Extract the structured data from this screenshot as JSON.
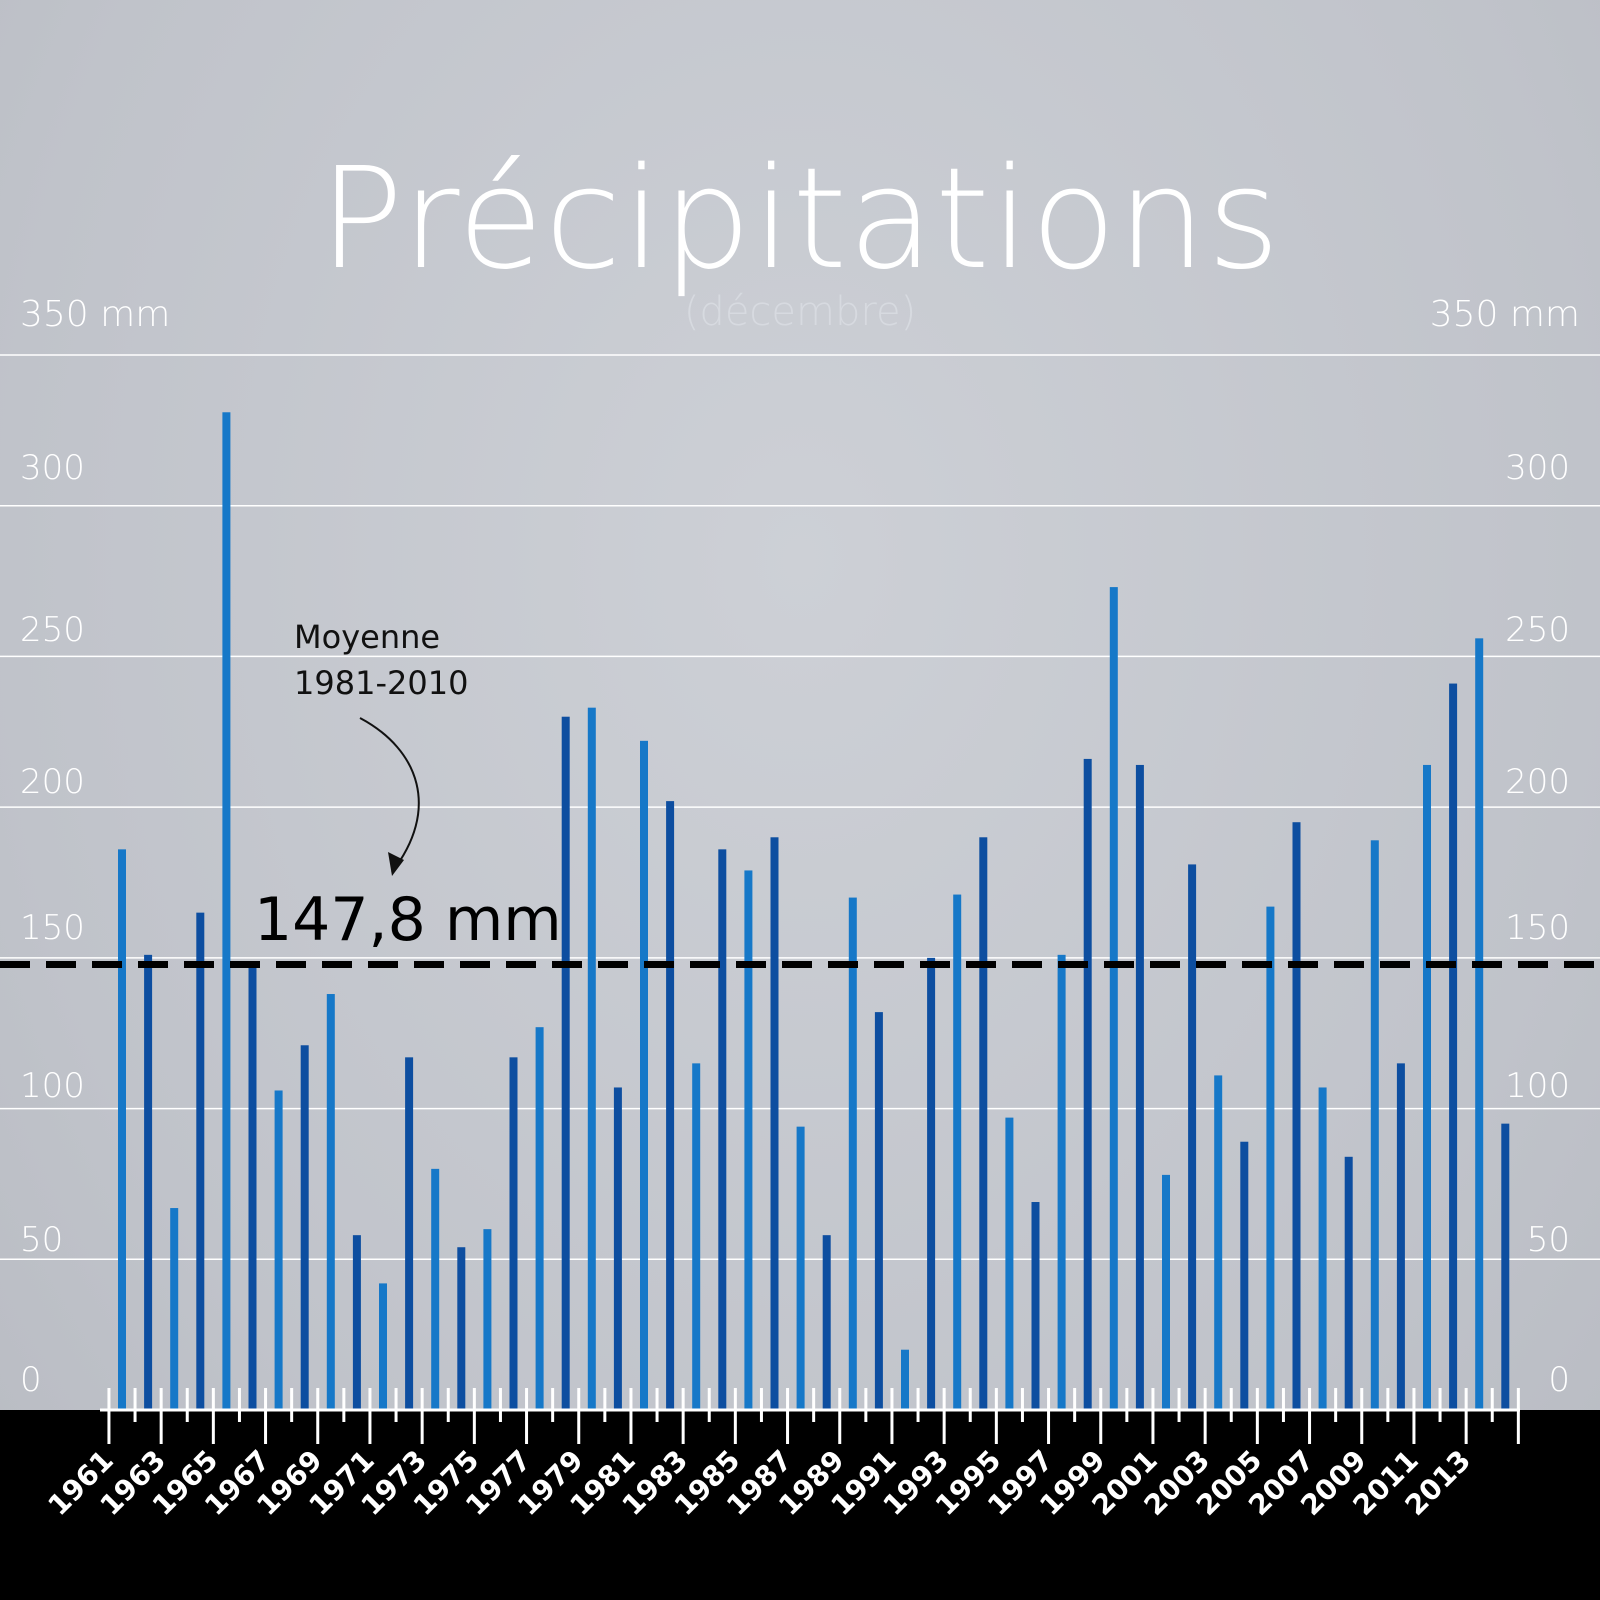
{
  "title": "Précipitations",
  "subtitle": "(décembre)",
  "left_axis": {
    "unit_label": "350 mm",
    "ticks": [
      "300",
      "250",
      "200",
      "150",
      "100",
      "50",
      "0"
    ]
  },
  "right_axis": {
    "unit_label": "350 mm",
    "ticks": [
      "300",
      "250",
      "200",
      "150",
      "100",
      "50",
      "0"
    ]
  },
  "annotation": {
    "label_line1": "Moyenne",
    "label_line2": "1981-2010",
    "value": "147,8 mm"
  },
  "colors": {
    "bar_light": "#1678c8",
    "bar_dark": "#0d4ea0",
    "grid": "#ffffff",
    "mean_line": "#000000",
    "footer": "#000000"
  },
  "chart_data": {
    "type": "bar",
    "title": "Précipitations",
    "subtitle": "(décembre)",
    "ylim": [
      0,
      350
    ],
    "grid": true,
    "yticks": [
      0,
      50,
      100,
      150,
      200,
      250,
      300,
      350
    ],
    "mean": 147.8,
    "mean_label": "147,8 mm",
    "categories": [
      "1961",
      "1962",
      "1963",
      "1964",
      "1965",
      "1966",
      "1967",
      "1968",
      "1969",
      "1970",
      "1971",
      "1972",
      "1973",
      "1974",
      "1975",
      "1976",
      "1977",
      "1978",
      "1979",
      "1980",
      "1981",
      "1982",
      "1983",
      "1984",
      "1985",
      "1986",
      "1987",
      "1988",
      "1989",
      "1990",
      "1991",
      "1992",
      "1993",
      "1994",
      "1995",
      "1996",
      "1997",
      "1998",
      "1999",
      "2000",
      "2001",
      "2002",
      "2003",
      "2004",
      "2005",
      "2006",
      "2007",
      "2008",
      "2009",
      "2010",
      "2011",
      "2012",
      "2013",
      "2014"
    ],
    "tick_labels": [
      "1961",
      "1963",
      "1965",
      "1967",
      "1969",
      "1971",
      "1973",
      "1975",
      "1977",
      "1979",
      "1981",
      "1983",
      "1985",
      "1987",
      "1989",
      "1991",
      "1993",
      "1995",
      "1997",
      "1999",
      "2001",
      "2003",
      "2005",
      "2007",
      "2009",
      "2011",
      "2013"
    ],
    "values": [
      186,
      151,
      67,
      165,
      331,
      147,
      106,
      121,
      138,
      58,
      42,
      117,
      80,
      54,
      60,
      117,
      127,
      230,
      233,
      107,
      222,
      202,
      115,
      186,
      179,
      190,
      94,
      58,
      170,
      132,
      20,
      150,
      171,
      190,
      97,
      69,
      151,
      216,
      273,
      214,
      78,
      181,
      111,
      89,
      167,
      195,
      107,
      84,
      189,
      115,
      214,
      241,
      256,
      95
    ]
  }
}
